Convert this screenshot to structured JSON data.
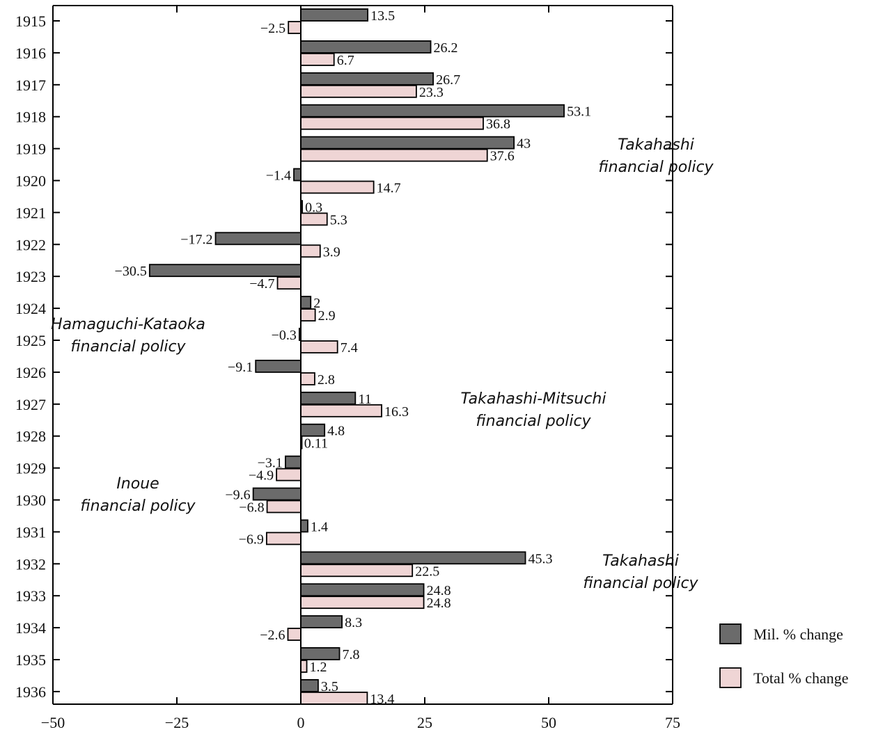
{
  "chart_data": {
    "type": "bar",
    "orientation": "horizontal",
    "categories": [
      "1915",
      "1916",
      "1917",
      "1918",
      "1919",
      "1920",
      "1921",
      "1922",
      "1923",
      "1924",
      "1925",
      "1926",
      "1927",
      "1928",
      "1929",
      "1930",
      "1931",
      "1932",
      "1933",
      "1934",
      "1935",
      "1936"
    ],
    "series": [
      {
        "name": "Mil. % change",
        "color": "#6b6b6b",
        "values": [
          13.5,
          26.2,
          26.7,
          53.1,
          43,
          -1.4,
          0.3,
          -17.2,
          -30.5,
          2,
          -0.3,
          -9.1,
          11,
          4.8,
          -3.1,
          -9.6,
          1.4,
          45.3,
          24.8,
          8.3,
          7.8,
          3.5
        ],
        "labels": [
          "13.5",
          "26.2",
          "26.7",
          "53.1",
          "43",
          "−1.4",
          "0.3",
          "−17.2",
          "−30.5",
          "2",
          "−0.3",
          "−9.1",
          "11",
          "4.8",
          "−3.1",
          "−9.6",
          "1.4",
          "45.3",
          "24.8",
          "8.3",
          "7.8",
          "3.5"
        ]
      },
      {
        "name": "Total % change",
        "color": "#efd5d5",
        "values": [
          -2.5,
          6.7,
          23.3,
          36.8,
          37.6,
          14.7,
          5.3,
          3.9,
          -4.7,
          2.9,
          7.4,
          2.8,
          16.3,
          0.11,
          -4.9,
          -6.8,
          -6.9,
          22.5,
          24.8,
          -2.6,
          1.2,
          13.4
        ],
        "labels": [
          "−2.5",
          "6.7",
          "23.3",
          "36.8",
          "37.6",
          "14.7",
          "5.3",
          "3.9",
          "−4.7",
          "2.9",
          "7.4",
          "2.8",
          "16.3",
          "0.11",
          "−4.9",
          "−6.8",
          "−6.9",
          "22.5",
          "24.8",
          "−2.6",
          "1.2",
          "13.4"
        ]
      }
    ],
    "xlim": [
      -50,
      75
    ],
    "xticks": [
      -50,
      -25,
      0,
      25,
      50,
      75
    ],
    "xtick_labels": [
      "−50",
      "−25",
      "0",
      "25",
      "50",
      "75"
    ],
    "grid": false,
    "legend_position": "bottom-right",
    "annotations": [
      {
        "lines": [
          "Takahashi",
          "financial  policy"
        ],
        "anchor_year": "1919"
      },
      {
        "lines": [
          "Hamaguchi-Kataoka",
          "financial  policy"
        ],
        "anchor_year": "1925"
      },
      {
        "lines": [
          "Takahashi-Mitsuchi",
          "financial  policy"
        ],
        "anchor_year": "1927"
      },
      {
        "lines": [
          "Inoue",
          "financial  policy"
        ],
        "anchor_year": "1930"
      },
      {
        "lines": [
          "Takahashi",
          "financial  policy"
        ],
        "anchor_year": "1932"
      }
    ]
  }
}
